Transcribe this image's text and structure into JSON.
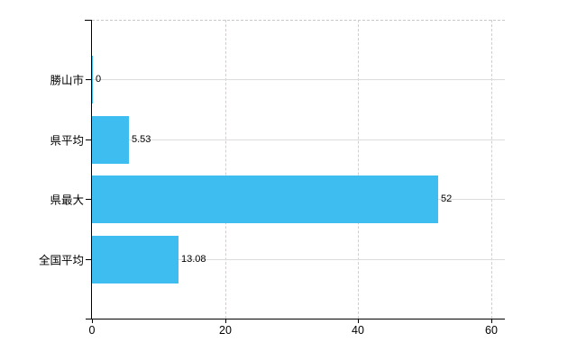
{
  "chart_data": {
    "type": "bar",
    "orientation": "horizontal",
    "title": "",
    "categories": [
      "勝山市",
      "県平均",
      "県最大",
      "全国平均"
    ],
    "values": [
      0,
      5.53,
      52,
      13.08
    ],
    "value_labels": [
      "0",
      "5.53",
      "52",
      "13.08"
    ],
    "x_ticks": [
      0,
      20,
      40,
      60
    ],
    "x_tick_labels": [
      "0",
      "20",
      "40",
      "60"
    ],
    "xlim": [
      0,
      62.3
    ],
    "grid": true,
    "legend_position": "none",
    "bar_color": "#3ebdf0"
  },
  "colors": {
    "bar": "#3ebdf0",
    "horizontal_grid": "#dcdcdc",
    "vertical_grid": "#d3cdd3",
    "plot_top_border": "#c9c9c9",
    "axis": "#000000",
    "text": "#000000",
    "background": "#ffffff"
  }
}
